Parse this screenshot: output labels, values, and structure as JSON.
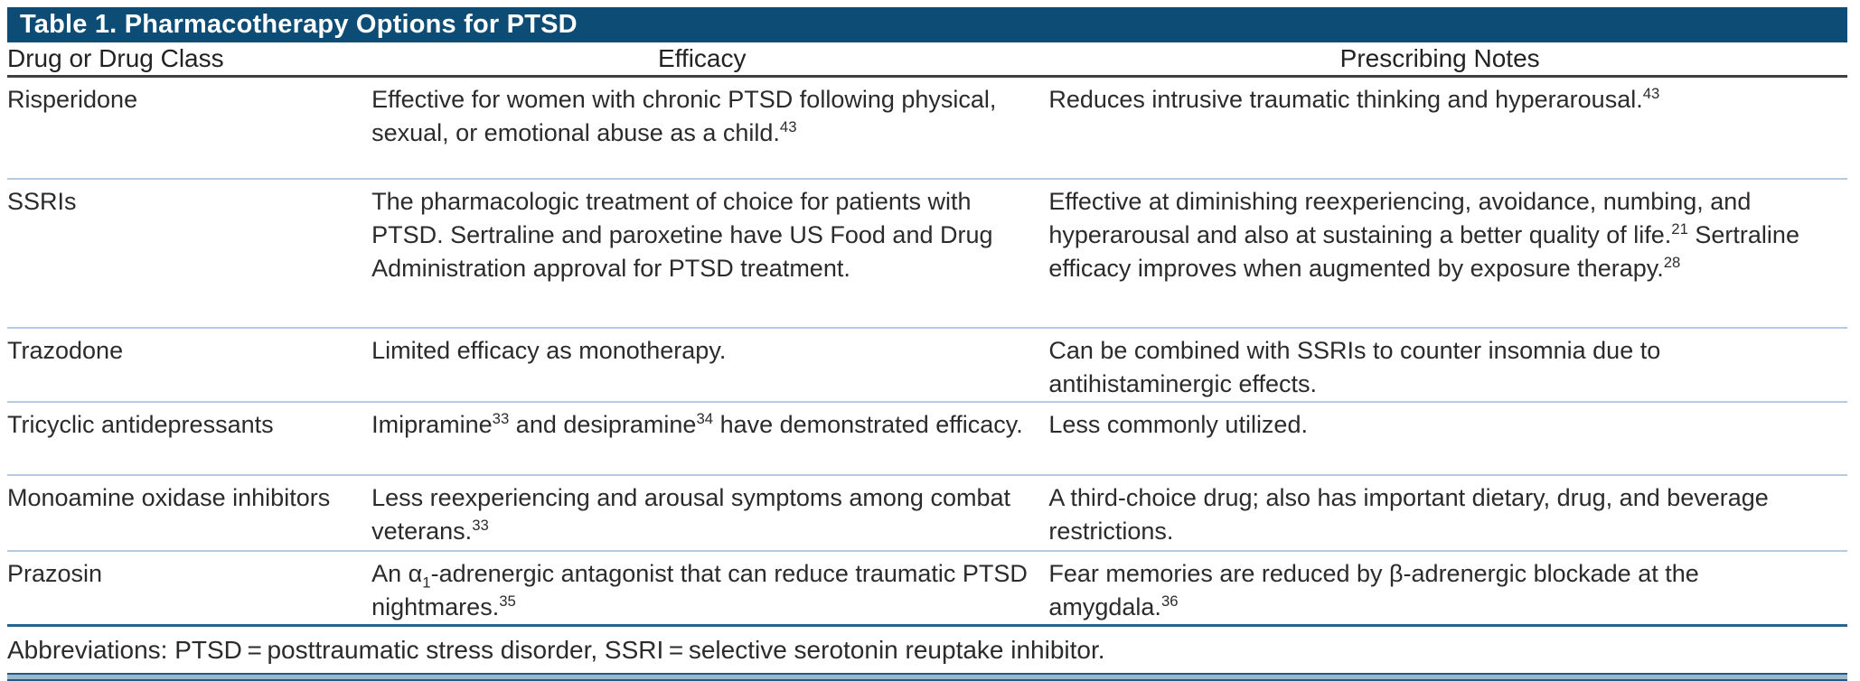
{
  "table": {
    "title": "Table 1. Pharmacotherapy Options for PTSD",
    "columns": [
      "Drug or Drug Class",
      "Efficacy",
      "Prescribing Notes"
    ],
    "rows": [
      {
        "drug": "Risperidone",
        "efficacy": [
          {
            "t": "Effective for women with chronic PTSD following physical, sexual, or emotional abuse as a child."
          },
          {
            "sup": "43"
          }
        ],
        "notes": [
          {
            "t": "Reduces intrusive traumatic thinking and hyperarousal."
          },
          {
            "sup": "43"
          }
        ]
      },
      {
        "drug": "SSRIs",
        "efficacy": [
          {
            "t": "The pharmacologic treatment of choice for patients with PTSD. Sertraline and paroxetine have US Food and Drug Administration approval for PTSD treatment."
          }
        ],
        "notes": [
          {
            "t": "Effective at diminishing reexperiencing, avoidance, numbing, and hyperarousal and also at sustaining a better quality of life."
          },
          {
            "sup": "21"
          },
          {
            "t": " Sertraline efficacy improves when augmented by exposure therapy."
          },
          {
            "sup": "28"
          }
        ]
      },
      {
        "drug": "Trazodone",
        "efficacy": [
          {
            "t": "Limited efficacy as monotherapy."
          }
        ],
        "notes": [
          {
            "t": "Can be combined with SSRIs to counter insomnia due to antihistaminergic effects."
          }
        ]
      },
      {
        "drug": "Tricyclic antidepressants",
        "efficacy": [
          {
            "t": "Imipramine"
          },
          {
            "sup": "33"
          },
          {
            "t": " and desipramine"
          },
          {
            "sup": "34"
          },
          {
            "t": " have demonstrated efficacy."
          }
        ],
        "notes": [
          {
            "t": "Less commonly utilized."
          }
        ]
      },
      {
        "drug": "Monoamine oxidase inhibitors",
        "efficacy": [
          {
            "t": "Less reexperiencing and arousal symptoms among combat veterans."
          },
          {
            "sup": "33"
          }
        ],
        "notes": [
          {
            "t": "A third-choice drug; also has important dietary, drug, and beverage restrictions."
          }
        ]
      },
      {
        "drug": "Prazosin",
        "efficacy": [
          {
            "t": "An α"
          },
          {
            "sub": "1"
          },
          {
            "t": "-adrenergic antagonist that can reduce traumatic PTSD nightmares."
          },
          {
            "sup": "35"
          }
        ],
        "notes": [
          {
            "t": "Fear memories are reduced by β-adrenergic blockade at the amygdala."
          },
          {
            "sup": "36"
          }
        ]
      }
    ],
    "footnote": "Abbreviations: PTSD = posttraumatic stress disorder, SSRI = selective serotonin reuptake inhibitor.",
    "colors": {
      "header_bar": "#0d4c74",
      "header_rule": "#3f3f3f",
      "row_separator": "#b7c9e5",
      "blue_rule": "#26648e"
    }
  }
}
